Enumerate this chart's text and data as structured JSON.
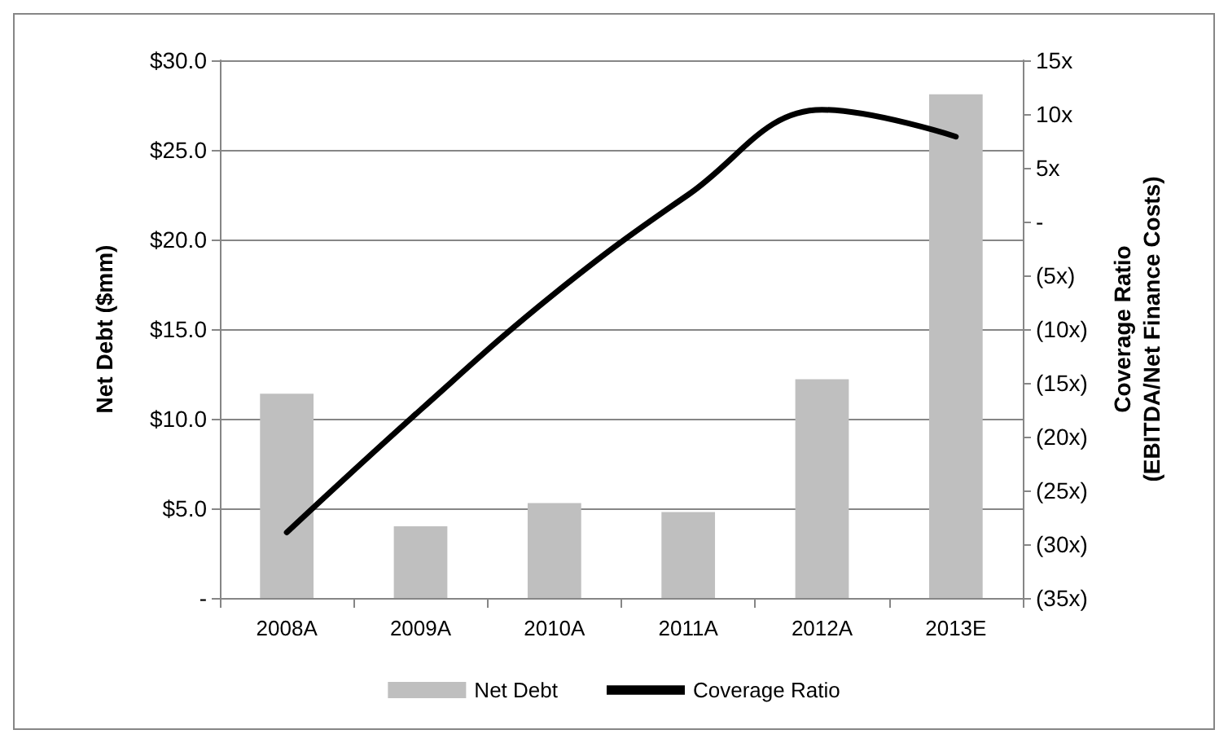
{
  "chart_data": {
    "type": "bar",
    "categories": [
      "2008A",
      "2009A",
      "2010A",
      "2011A",
      "2012A",
      "2013E"
    ],
    "ylabel": "Net Debt ($mm)",
    "y2label": "Coverage Ratio\n(EBITDA/Net Finance Costs)",
    "series": [
      {
        "name": "Net Debt",
        "color": "#bfbfbf",
        "values": [
          11.4,
          4.0,
          5.3,
          4.8,
          12.2,
          28.1
        ]
      },
      {
        "name": "Coverage Ratio",
        "type": "line",
        "axis": "y2",
        "color": "#000000",
        "marker": "none",
        "values": [
          -28.9,
          -17.5,
          -6.7,
          2.5,
          10.4,
          7.9
        ]
      }
    ],
    "ylim": [
      0,
      30
    ],
    "yticks": [
      {
        "value": 0,
        "label": "-"
      },
      {
        "value": 5,
        "label": "$5.0"
      },
      {
        "value": 10,
        "label": "$10.0"
      },
      {
        "value": 15,
        "label": "$15.0"
      },
      {
        "value": 20,
        "label": "$20.0"
      },
      {
        "value": 25,
        "label": "$25.0"
      },
      {
        "value": 30,
        "label": "$30.0"
      }
    ],
    "y2lim": [
      -35,
      15
    ],
    "y2ticks": [
      {
        "value": -35,
        "label": "(35x)"
      },
      {
        "value": -30,
        "label": "(30x)"
      },
      {
        "value": -25,
        "label": "(25x)"
      },
      {
        "value": -20,
        "label": "(20x)"
      },
      {
        "value": -15,
        "label": "(15x)"
      },
      {
        "value": -10,
        "label": "(10x)"
      },
      {
        "value": -5,
        "label": "(5x)"
      },
      {
        "value": 0,
        "label": "-"
      },
      {
        "value": 5,
        "label": "5x"
      },
      {
        "value": 10,
        "label": "10x"
      },
      {
        "value": 15,
        "label": "15x"
      }
    ],
    "grid": "y",
    "legend": "bottom"
  }
}
